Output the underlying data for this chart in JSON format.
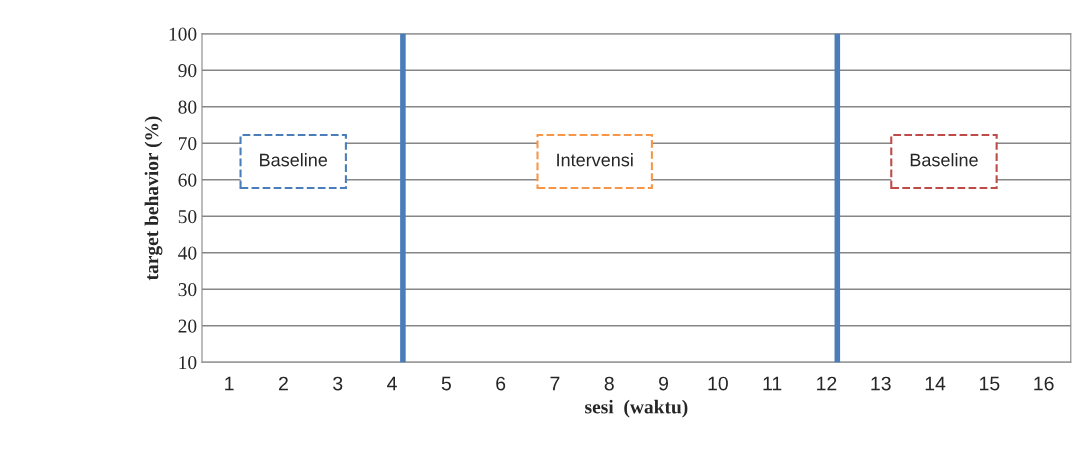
{
  "chart_data": {
    "type": "line",
    "xlabel": "sesi  (waktu)",
    "ylabel": "target behavior (%)",
    "xlim": [
      0.5,
      16.5
    ],
    "xticks": [
      1,
      2,
      3,
      4,
      5,
      6,
      7,
      8,
      9,
      10,
      11,
      12,
      13,
      14,
      15,
      16
    ],
    "ylim": [
      10,
      100
    ],
    "yticks": [
      10,
      20,
      30,
      40,
      50,
      60,
      70,
      80,
      90,
      100
    ],
    "grid": "y",
    "legend": false,
    "ref_lines": [
      {
        "axis": "x",
        "value": 4.2,
        "color": "#4a7ebb"
      },
      {
        "axis": "x",
        "value": 12.2,
        "color": "#4a7ebb"
      }
    ],
    "annotations": [
      "Baseline",
      "Intervensi",
      "Baseline"
    ]
  }
}
